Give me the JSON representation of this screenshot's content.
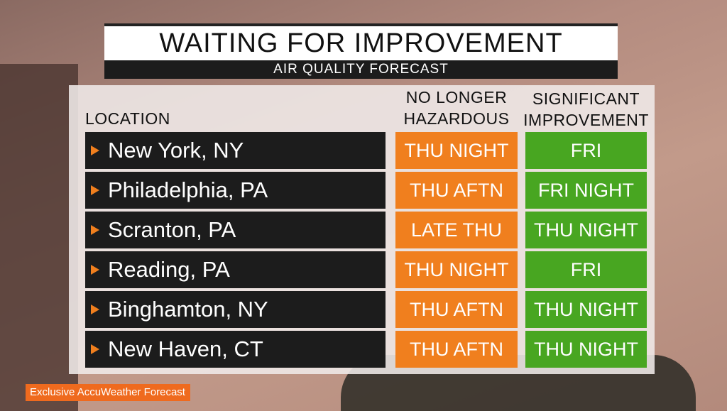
{
  "header": {
    "title": "WAITING FOR IMPROVEMENT",
    "subtitle": "AIR QUALITY FORECAST"
  },
  "table": {
    "columns": [
      "LOCATION",
      "NO LONGER HAZARDOUS",
      "SIGNIFICANT IMPROVEMENT"
    ],
    "rows": [
      [
        "New York, NY",
        "THU NIGHT",
        "FRI"
      ],
      [
        "Philadelphia, PA",
        "THU AFTN",
        "FRI NIGHT"
      ],
      [
        "Scranton, PA",
        "LATE THU",
        "THU NIGHT"
      ],
      [
        "Reading, PA",
        "THU NIGHT",
        "FRI"
      ],
      [
        "Binghamton, NY",
        "THU AFTN",
        "THU NIGHT"
      ],
      [
        "New Haven, CT",
        "THU AFTN",
        "THU NIGHT"
      ]
    ]
  },
  "footer": {
    "text": "Exclusive AccuWeather Forecast"
  }
}
